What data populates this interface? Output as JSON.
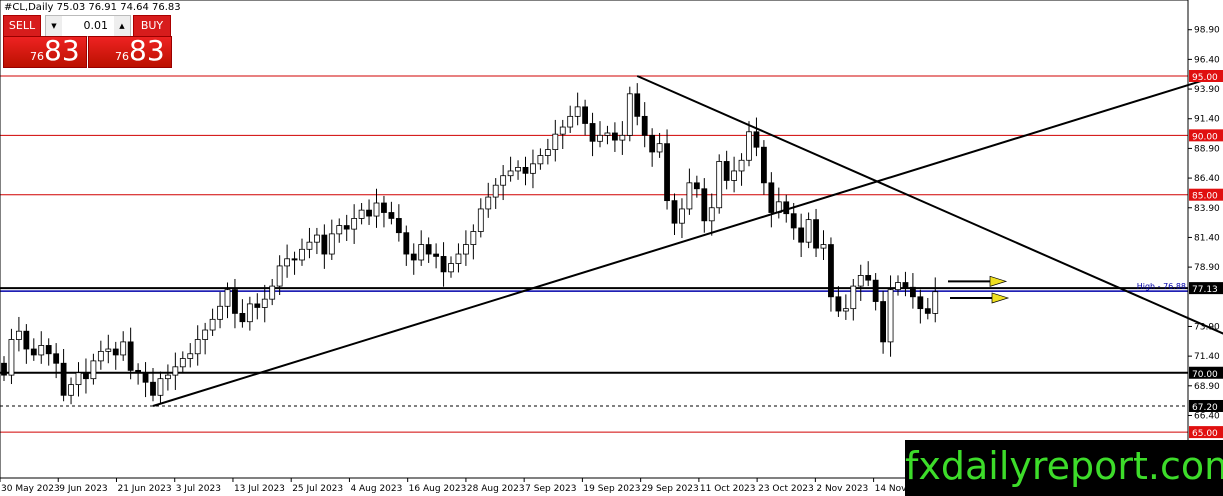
{
  "header": {
    "title": "#CL,Daily  75.03 76.91 74.64 76.83"
  },
  "trade_panel": {
    "sell_label": "SELL",
    "buy_label": "BUY",
    "lot": "0.01",
    "sell_small": "76",
    "sell_big": "83",
    "buy_small": "76",
    "buy_big": "83",
    "up_icon": "triangle-up",
    "down_icon": "triangle-down"
  },
  "watermark": "fxdailyreport.com",
  "colors": {
    "bull": "#ffffff",
    "bear": "#000000",
    "level_red": "#d00000",
    "badge_red": "#e01010",
    "badge_black": "#000000",
    "line_blue": "#0000aa",
    "arrow_yellow": "#f0e020",
    "watermark_green": "#3ddc2a"
  },
  "chart_data": {
    "type": "candlestick",
    "symbol": "#CL",
    "timeframe": "Daily",
    "ohlc_last": {
      "open": 75.03,
      "high": 76.91,
      "low": 74.64,
      "close": 76.83
    },
    "ylim": [
      64.2,
      101.4
    ],
    "y_ticks": [
      "98.90",
      "96.40",
      "93.90",
      "91.40",
      "88.90",
      "86.40",
      "83.90",
      "81.40",
      "78.90",
      "73.90",
      "71.40",
      "68.90",
      "66.40"
    ],
    "x_ticks": [
      {
        "label": "30 May 2023",
        "index": 0
      },
      {
        "label": "9 Jun 2023",
        "index": 8
      },
      {
        "label": "21 Jun 2023",
        "index": 16
      },
      {
        "label": "3 Jul 2023",
        "index": 24
      },
      {
        "label": "13 Jul 2023",
        "index": 32
      },
      {
        "label": "25 Jul 2023",
        "index": 40
      },
      {
        "label": "4 Aug 2023",
        "index": 48
      },
      {
        "label": "16 Aug 2023",
        "index": 56
      },
      {
        "label": "28 Aug 2023",
        "index": 64
      },
      {
        "label": "7 Sep 2023",
        "index": 72
      },
      {
        "label": "19 Sep 2023",
        "index": 80
      },
      {
        "label": "29 Sep 2023",
        "index": 88
      },
      {
        "label": "11 Oct 2023",
        "index": 96
      },
      {
        "label": "23 Oct 2023",
        "index": 104
      },
      {
        "label": "2 Nov 2023",
        "index": 112
      },
      {
        "label": "14 Nov 2023",
        "index": 120
      }
    ],
    "first_open": 70.8,
    "closes": [
      69.8,
      72.8,
      73.5,
      72.0,
      71.5,
      72.3,
      71.6,
      70.8,
      68.1,
      69.0,
      70.0,
      69.5,
      71.0,
      71.8,
      72.0,
      71.5,
      72.6,
      70.2,
      70.0,
      69.2,
      68.1,
      69.5,
      69.8,
      70.5,
      71.2,
      71.6,
      72.8,
      73.6,
      74.5,
      75.6,
      77.0,
      75.0,
      74.3,
      75.8,
      75.5,
      76.2,
      77.3,
      79.0,
      79.6,
      79.5,
      80.4,
      81.0,
      81.6,
      80.0,
      81.7,
      82.4,
      82.1,
      83.0,
      83.7,
      83.2,
      84.3,
      83.5,
      83.0,
      81.8,
      80.0,
      79.5,
      80.8,
      80.0,
      79.8,
      78.5,
      79.2,
      80.0,
      80.8,
      81.9,
      83.8,
      84.8,
      85.8,
      86.6,
      87.0,
      87.3,
      86.8,
      87.6,
      88.3,
      88.8,
      90.1,
      90.7,
      91.6,
      92.4,
      91.0,
      89.5,
      90.0,
      90.2,
      89.6,
      90.0,
      93.5,
      91.6,
      90.0,
      88.6,
      89.3,
      84.5,
      82.6,
      83.8,
      86.0,
      85.5,
      82.8,
      83.9,
      87.8,
      86.2,
      87.0,
      87.9,
      90.3,
      89.0,
      86.0,
      83.5,
      84.4,
      83.4,
      82.2,
      81.0,
      82.9,
      80.5,
      80.8,
      76.4,
      75.2,
      75.4,
      77.3,
      78.2,
      77.8,
      76.0,
      72.6,
      77.0,
      77.6,
      77.2,
      76.4,
      75.4,
      75.0,
      76.83
    ],
    "levels": [
      {
        "price": 95.0,
        "label": "95.00",
        "style": "red"
      },
      {
        "price": 90.0,
        "label": "90.00",
        "style": "red"
      },
      {
        "price": 85.0,
        "label": "85.00",
        "style": "red"
      },
      {
        "price": 77.13,
        "label": "77.13",
        "style": "black"
      },
      {
        "price": 70.0,
        "label": "70.00",
        "style": "black"
      },
      {
        "price": 67.2,
        "label": "67.20",
        "style": "dashed"
      },
      {
        "price": 65.0,
        "label": "65.00",
        "style": "red"
      }
    ],
    "high_line": {
      "price": 76.88,
      "label": "High - 76.88"
    },
    "trendlines": [
      {
        "from": {
          "index": 20,
          "price": 67.2
        },
        "to": {
          "index": 168,
          "price": 96.0
        }
      },
      {
        "from": {
          "index": 85,
          "price": 95.0
        },
        "to": {
          "index": 168,
          "price": 72.1
        }
      }
    ],
    "arrows": [
      {
        "price": 77.7,
        "direction": "right"
      },
      {
        "price": 76.3,
        "direction": "right"
      }
    ]
  }
}
